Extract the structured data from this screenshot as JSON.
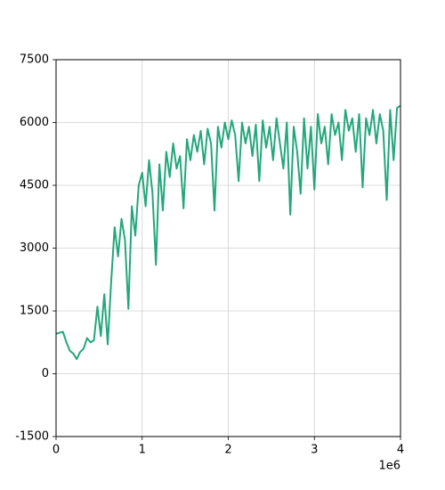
{
  "chart_data": {
    "type": "line",
    "x": [
      0,
      0.04,
      0.08,
      0.12,
      0.16,
      0.2,
      0.24,
      0.28,
      0.32,
      0.36,
      0.4,
      0.44,
      0.48,
      0.52,
      0.56,
      0.6,
      0.64,
      0.68,
      0.72,
      0.76,
      0.8,
      0.84,
      0.88,
      0.92,
      0.96,
      1.0,
      1.04,
      1.08,
      1.12,
      1.16,
      1.2,
      1.24,
      1.28,
      1.32,
      1.36,
      1.4,
      1.44,
      1.48,
      1.52,
      1.56,
      1.6,
      1.64,
      1.68,
      1.72,
      1.76,
      1.8,
      1.84,
      1.88,
      1.92,
      1.96,
      2.0,
      2.04,
      2.08,
      2.12,
      2.16,
      2.2,
      2.24,
      2.28,
      2.32,
      2.36,
      2.4,
      2.44,
      2.48,
      2.52,
      2.56,
      2.6,
      2.64,
      2.68,
      2.72,
      2.76,
      2.8,
      2.84,
      2.88,
      2.92,
      2.96,
      3.0,
      3.04,
      3.08,
      3.12,
      3.16,
      3.2,
      3.24,
      3.28,
      3.32,
      3.36,
      3.4,
      3.44,
      3.48,
      3.52,
      3.56,
      3.6,
      3.64,
      3.68,
      3.72,
      3.76,
      3.8,
      3.84,
      3.88,
      3.92,
      3.96,
      4.0
    ],
    "series": [
      {
        "color": "#23a77a",
        "values": [
          950,
          980,
          1000,
          750,
          550,
          480,
          350,
          520,
          600,
          850,
          750,
          800,
          1600,
          900,
          1900,
          700,
          2200,
          3500,
          2800,
          3700,
          3200,
          1550,
          4000,
          3300,
          4500,
          4800,
          4000,
          5100,
          4300,
          2600,
          5000,
          3900,
          5300,
          4700,
          5500,
          4900,
          5200,
          3950,
          5600,
          5100,
          5700,
          5300,
          5800,
          5000,
          5850,
          5500,
          3900,
          5900,
          5400,
          6000,
          5600,
          6050,
          5700,
          4600,
          6000,
          5500,
          5900,
          5200,
          5950,
          4600,
          6050,
          5400,
          5900,
          5100,
          6100,
          5500,
          4900,
          6000,
          3800,
          5900,
          5300,
          4300,
          6100,
          4900,
          5900,
          4400,
          6200,
          5500,
          5900,
          5000,
          6200,
          5700,
          6000,
          5100,
          6300,
          5800,
          6100,
          5300,
          6200,
          4450,
          6100,
          5700,
          6300,
          5500,
          6200,
          5800,
          4150,
          6300,
          5100,
          6350,
          6400
        ]
      }
    ],
    "xlim": [
      0,
      4
    ],
    "xticks": [
      0,
      1,
      2,
      3,
      4
    ],
    "x_offset_label": "1e6",
    "ylim": [
      -1500,
      7500
    ],
    "yticks": [
      -1500,
      0,
      1500,
      3000,
      4500,
      6000,
      7500
    ],
    "grid": true
  }
}
